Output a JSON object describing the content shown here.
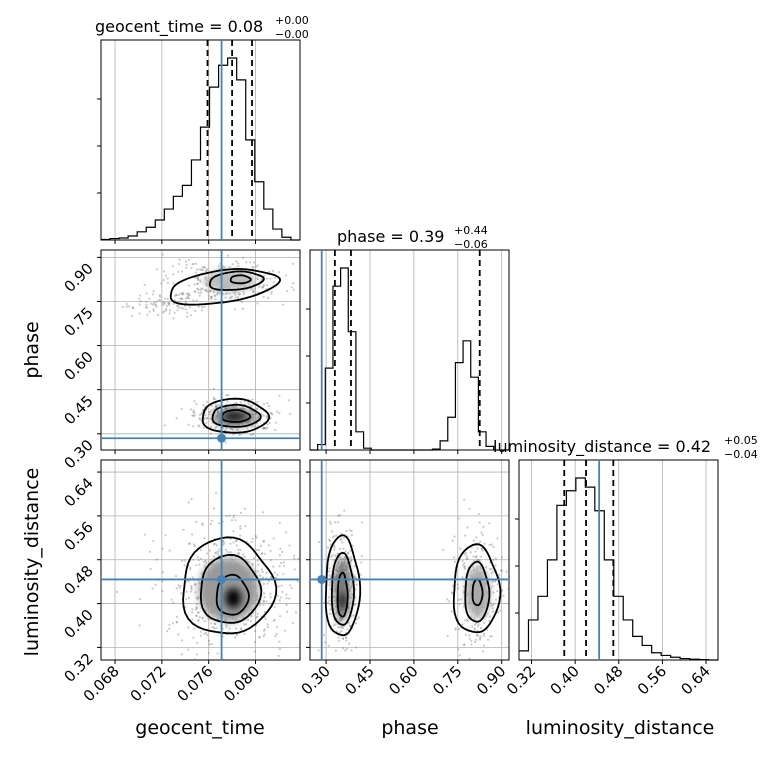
{
  "chart_data": {
    "type": "corner",
    "parameters": [
      "geocent_time",
      "phase",
      "luminosity_distance"
    ],
    "truths": {
      "geocent_time": 0.0771,
      "phase": 0.285,
      "luminosity_distance": 0.444
    },
    "ranges": {
      "geocent_time": [
        0.0668,
        0.0838
      ],
      "phase": [
        0.245,
        0.925
      ],
      "luminosity_distance": [
        0.297,
        0.662
      ]
    },
    "titles": [
      {
        "param": "geocent_time",
        "label": "geocent_time = 0.08",
        "plus": "+0.00",
        "minus": "−0.00"
      },
      {
        "param": "phase",
        "label": "phase = 0.39",
        "plus": "+0.44",
        "minus": "−0.06"
      },
      {
        "param": "luminosity_distance",
        "label": "luminosity_distance = 0.42",
        "plus": "+0.05",
        "minus": "−0.04"
      }
    ],
    "ticks": {
      "geocent_time": [
        "0.068",
        "0.072",
        "0.076",
        "0.080"
      ],
      "phase": [
        "0.30",
        "0.45",
        "0.60",
        "0.75",
        "0.90"
      ],
      "luminosity_distance": [
        "0.32",
        "0.40",
        "0.48",
        "0.56",
        "0.64"
      ]
    },
    "quantiles": {
      "geocent_time": [
        0.0759,
        0.078,
        0.0797
      ],
      "phase": [
        0.33,
        0.385,
        0.825
      ],
      "luminosity_distance": [
        0.38,
        0.42,
        0.47
      ]
    },
    "histograms": {
      "geocent_time": [
        0.003,
        0.008,
        0.011,
        0.022,
        0.045,
        0.07,
        0.11,
        0.17,
        0.24,
        0.3,
        0.44,
        0.62,
        0.84,
        0.96,
        1.0,
        0.88,
        0.55,
        0.32,
        0.17,
        0.06,
        0.015,
        0
      ],
      "phase": [
        0,
        0.03,
        0.45,
        0.9,
        1.0,
        0.65,
        0.1,
        0.01,
        0,
        0,
        0,
        0,
        0,
        0,
        0,
        0,
        0.005,
        0.05,
        0.18,
        0.48,
        0.6,
        0.4,
        0.1,
        0.02,
        0,
        0
      ],
      "luminosity_distance": [
        0.05,
        0.22,
        0.35,
        0.55,
        0.85,
        0.93,
        1.0,
        0.95,
        0.82,
        0.55,
        0.35,
        0.22,
        0.13,
        0.08,
        0.04,
        0.025,
        0.015,
        0.008,
        0.004,
        0.002,
        0
      ]
    },
    "grid": true
  }
}
